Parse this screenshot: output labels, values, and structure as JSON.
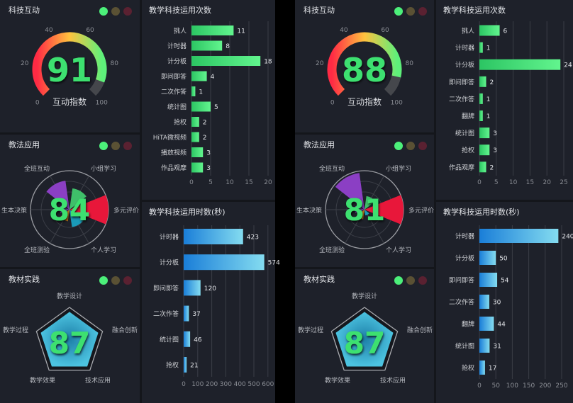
{
  "colors": {
    "panel_bg": "#1e212a",
    "gap_bg": "#14161b",
    "value_green": "#3ee070",
    "light_green": "#4cf07a",
    "light_yellow": "#5a5134",
    "light_red": "#5a2131",
    "count_bar_start": "#2cc563",
    "count_bar_end": "#62f58e",
    "time_bar_start": "#1a7ed8",
    "time_bar_end": "#84dcf0",
    "radar_fill": "#4cc3e0"
  },
  "chart_data": [
    {
      "type": "gauge",
      "title": "科技互动",
      "value": 91,
      "label": "互动指数",
      "min": 0,
      "max": 100,
      "ticks": [
        "0",
        "20",
        "40",
        "60",
        "80",
        "100"
      ]
    },
    {
      "type": "rose",
      "title": "教法应用",
      "value": 84,
      "categories": [
        "多元评价",
        "小组学习",
        "全班互动",
        "生本决策",
        "全班测验",
        "个人学习"
      ],
      "values": [
        100,
        55,
        75,
        25,
        30,
        45
      ],
      "colors": [
        "#e8173a",
        "#3fbf6a",
        "#8b3fc4",
        "#7a3fb0",
        "#c07a1a",
        "#1a9ab8"
      ]
    },
    {
      "type": "radar",
      "title": "教材实践",
      "value": 87,
      "categories": [
        "教学设计",
        "融合创新",
        "技术应用",
        "教学效果",
        "教学过程"
      ],
      "fraction": 0.87
    },
    {
      "type": "bar",
      "title": "教学科技运用次数",
      "categories": [
        "挑人",
        "计时器",
        "计分板",
        "即问即答",
        "二次作答",
        "统计图",
        "抢权",
        "HiTA微视频",
        "播放视频",
        "作品观摩"
      ],
      "values": [
        11,
        8,
        18,
        4,
        1,
        5,
        2,
        2,
        3,
        3
      ],
      "xlim": [
        0,
        20
      ],
      "ticks": [
        "0",
        "5",
        "10",
        "15",
        "20"
      ]
    },
    {
      "type": "bar",
      "title": "教学科技运用时数(秒)",
      "categories": [
        "计时器",
        "计分板",
        "即问即答",
        "二次作答",
        "统计图",
        "抢权"
      ],
      "values": [
        423,
        574,
        120,
        37,
        46,
        21
      ],
      "xlim": [
        0,
        600
      ],
      "ticks": [
        "0",
        "100",
        "200",
        "300",
        "400",
        "500",
        "600"
      ]
    },
    {
      "type": "gauge",
      "title": "科技互动",
      "value": 88,
      "label": "互动指数",
      "min": 0,
      "max": 100,
      "ticks": [
        "0",
        "20",
        "40",
        "60",
        "80",
        "100"
      ]
    },
    {
      "type": "rose",
      "title": "教法应用",
      "value": 81,
      "categories": [
        "多元评价",
        "小组学习",
        "全班互动",
        "生本决策",
        "全班测验",
        "个人学习"
      ],
      "values": [
        100,
        35,
        95,
        25,
        25,
        15
      ],
      "colors": [
        "#e8173a",
        "#3fbf6a",
        "#8b3fc4",
        "#7a3fb0",
        "#c07a1a",
        "#1a9ab8"
      ]
    },
    {
      "type": "radar",
      "title": "教材实践",
      "value": 87,
      "categories": [
        "教学设计",
        "融合创新",
        "技术应用",
        "教学效果",
        "教学过程"
      ],
      "fraction": 0.87
    },
    {
      "type": "bar",
      "title": "教学科技运用次数",
      "categories": [
        "挑人",
        "计时器",
        "计分板",
        "即问即答",
        "二次作答",
        "翻牌",
        "统计图",
        "抢权",
        "作品观摩"
      ],
      "values": [
        6,
        1,
        24,
        2,
        1,
        1,
        3,
        3,
        2
      ],
      "xlim": [
        0,
        25
      ],
      "ticks": [
        "0",
        "5",
        "10",
        "15",
        "20",
        "25"
      ]
    },
    {
      "type": "bar",
      "title": "教学科技运用时数(秒)",
      "categories": [
        "计时器",
        "计分板",
        "即问即答",
        "二次作答",
        "翻牌",
        "统计图",
        "抢权"
      ],
      "values": [
        240,
        50,
        54,
        30,
        44,
        31,
        17
      ],
      "xlim": [
        0,
        250
      ],
      "ticks": [
        "0",
        "50",
        "100",
        "150",
        "200",
        "250"
      ]
    }
  ]
}
